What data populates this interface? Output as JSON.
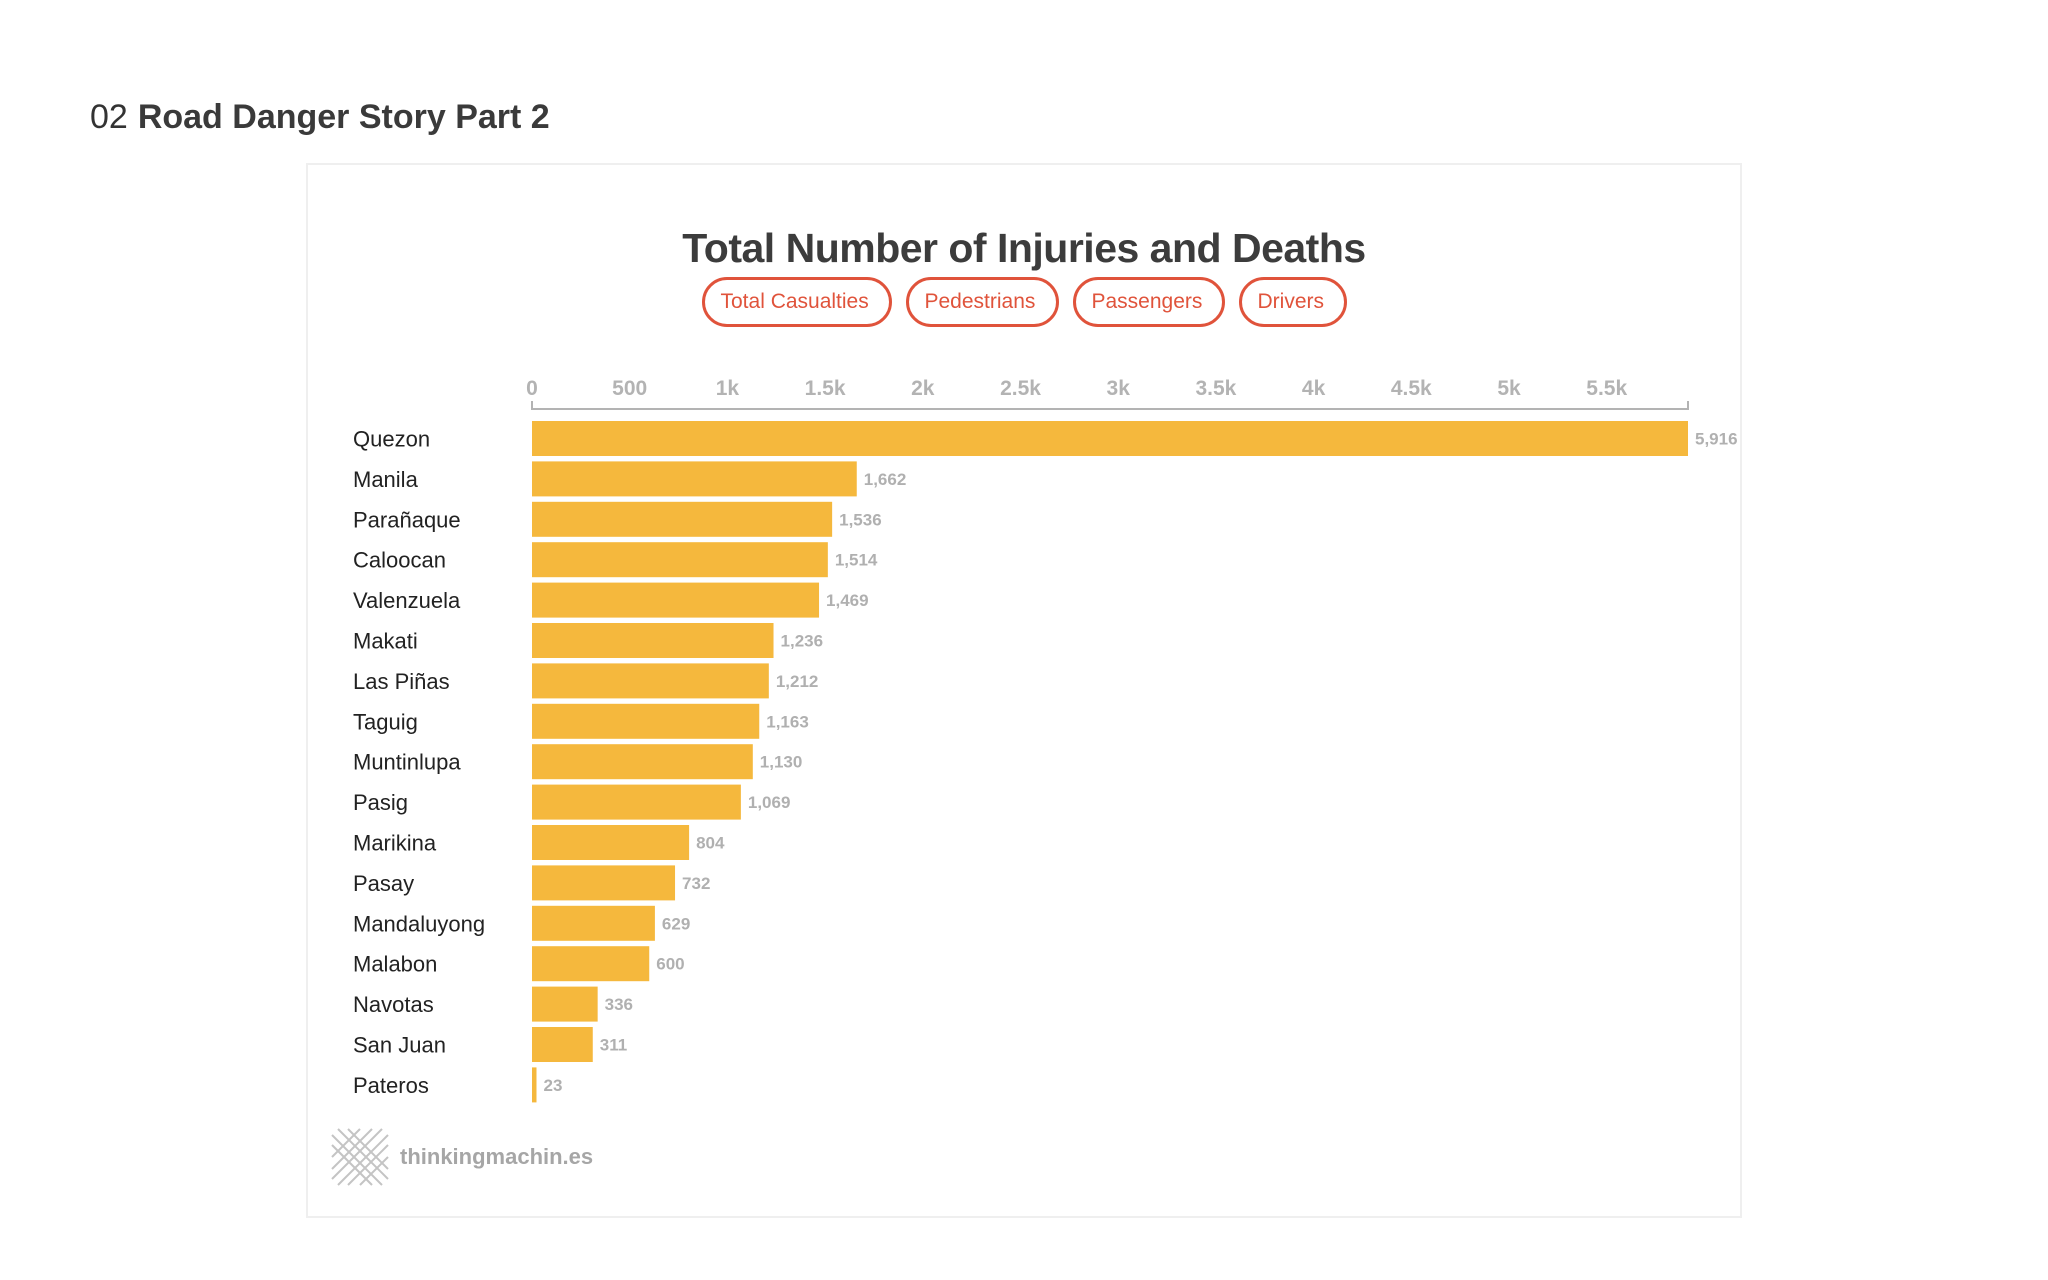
{
  "section": {
    "number": "02",
    "title": "Road Danger Story Part 2"
  },
  "filters": [
    "Total Casualties",
    "Pedestrians",
    "Passengers",
    "Drivers"
  ],
  "brand": {
    "text": "thinkingmachin.es",
    "icon": "crosshatch-logo-icon"
  },
  "colors": {
    "bar": "#f5b83d",
    "accent": "#e0533b",
    "axis": "#b3b3b3"
  },
  "chart_data": {
    "type": "bar",
    "orientation": "horizontal",
    "title": "Total Number of Injuries and Deaths",
    "categories": [
      "Quezon",
      "Manila",
      "Parañaque",
      "Caloocan",
      "Valenzuela",
      "Makati",
      "Las Piñas",
      "Taguig",
      "Muntinlupa",
      "Pasig",
      "Marikina",
      "Pasay",
      "Mandaluyong",
      "Malabon",
      "Navotas",
      "San Juan",
      "Pateros"
    ],
    "values": [
      5916,
      1662,
      1536,
      1514,
      1469,
      1236,
      1212,
      1163,
      1130,
      1069,
      804,
      732,
      629,
      600,
      336,
      311,
      23
    ],
    "value_labels": [
      "5,916",
      "1,662",
      "1,536",
      "1,514",
      "1,469",
      "1,236",
      "1,212",
      "1,163",
      "1,130",
      "1,069",
      "804",
      "732",
      "629",
      "600",
      "336",
      "311",
      "23"
    ],
    "xlim": [
      0,
      5916
    ],
    "x_ticks": [
      0,
      500,
      1000,
      1500,
      2000,
      2500,
      3000,
      3500,
      4000,
      4500,
      5000,
      5500
    ],
    "x_tick_labels": [
      "0",
      "500",
      "1k",
      "1.5k",
      "2k",
      "2.5k",
      "3k",
      "3.5k",
      "4k",
      "4.5k",
      "5k",
      "5.5k"
    ],
    "axis_position": "top",
    "grid": false,
    "xlabel": "",
    "ylabel": ""
  }
}
